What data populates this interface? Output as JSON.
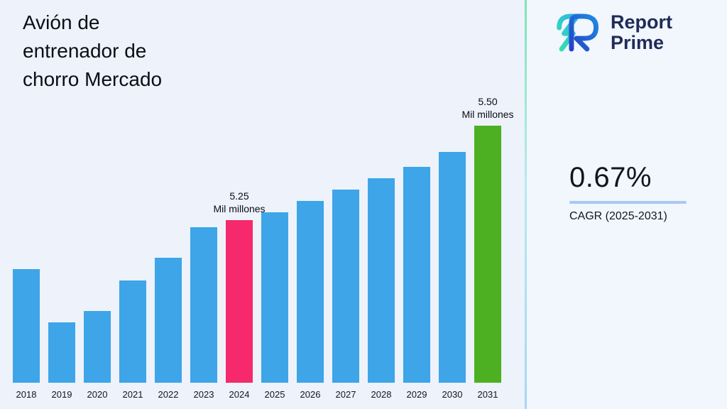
{
  "title": "Avión de\nentrenador de\nchorro Mercado",
  "chart_data": {
    "type": "bar",
    "title": "Avión de entrenador de chorro Mercado",
    "categories": [
      "2018",
      "2019",
      "2020",
      "2021",
      "2022",
      "2023",
      "2024",
      "2025",
      "2026",
      "2027",
      "2028",
      "2029",
      "2030",
      "2031"
    ],
    "values": [
      5.12,
      4.98,
      5.01,
      5.09,
      5.15,
      5.23,
      5.25,
      5.27,
      5.3,
      5.33,
      5.36,
      5.39,
      5.43,
      5.5
    ],
    "unit": "Mil millones",
    "xlabel": "",
    "ylabel": "",
    "ylim": [
      4.82,
      5.55
    ],
    "grid": false,
    "legend": "none",
    "bar_color": "#3da5e8",
    "highlighted": [
      {
        "category": "2024",
        "color": "#f5296b",
        "label": "5.25",
        "sublabel": "Mil millones"
      },
      {
        "category": "2031",
        "color": "#4cb022",
        "label": "5.50",
        "sublabel": "Mil millones"
      }
    ]
  },
  "sidebar": {
    "logo_line1": "Report",
    "logo_line2": "Prime",
    "cagr_value": "0.67%",
    "cagr_label": "CAGR (2025-2031)"
  },
  "colors": {
    "background": "#edf2fb",
    "bar_blue": "#3da5e8",
    "bar_pink": "#f5296b",
    "bar_green": "#4cb022",
    "divider_top": "#7ce6b4",
    "divider_bottom": "#a7d6f2",
    "cagr_underline": "#a9c8f2",
    "logo_navy": "#1f2c56"
  }
}
